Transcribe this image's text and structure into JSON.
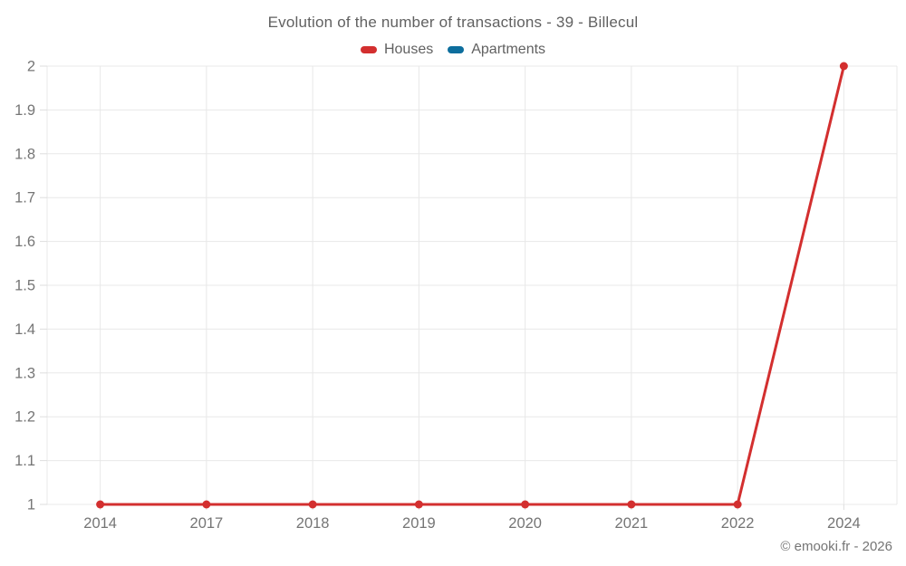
{
  "chart": {
    "title": "Evolution of the number of transactions - 39 - Billecul",
    "copyright": "© emooki.fr - 2026"
  },
  "chart_data": {
    "type": "line",
    "title": "Evolution of the number of transactions - 39 - Billecul",
    "categories": [
      "2014",
      "2017",
      "2018",
      "2019",
      "2020",
      "2021",
      "2022",
      "2024"
    ],
    "series": [
      {
        "name": "Houses",
        "color": "#d32f2f",
        "values": [
          1,
          1,
          1,
          1,
          1,
          1,
          1,
          2
        ]
      },
      {
        "name": "Apartments",
        "color": "#0d6e9d",
        "values": []
      }
    ],
    "xlabel": "",
    "ylabel": "",
    "ylim": [
      1,
      2
    ],
    "ytick_step": 0.1,
    "ytick_labels": [
      "1",
      "1.1",
      "1.2",
      "1.3",
      "1.4",
      "1.5",
      "1.6",
      "1.7",
      "1.8",
      "1.9",
      "2"
    ],
    "grid": true,
    "legend_position": "top",
    "colors": {
      "grid": "#e8e8e8",
      "tick": "#dedede",
      "axis_label": "#757575",
      "title_text": "#616161"
    }
  }
}
